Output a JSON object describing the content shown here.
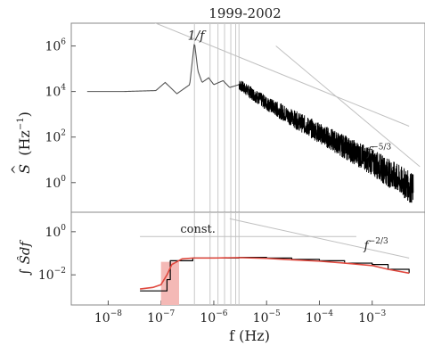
{
  "chart_data": [
    {
      "type": "line",
      "title": "1999-2002",
      "ylabel_main": "S",
      "ylabel_unit": "(Hz",
      "ylabel_exp": "−1",
      "ylabel_close": ")",
      "xscale": "log",
      "yscale": "log",
      "xlim": [
        2e-09,
        0.01
      ],
      "ylim": [
        0.05,
        10000000.0
      ],
      "yticks": [
        {
          "value": 1000000.0,
          "base": "10",
          "exp": "6"
        },
        {
          "value": 10000.0,
          "base": "10",
          "exp": "4"
        },
        {
          "value": 100.0,
          "base": "10",
          "exp": "2"
        },
        {
          "value": 1,
          "base": "10",
          "exp": "0"
        }
      ],
      "spectrum_envelope": {
        "x": [
          4e-09,
          2e-08,
          8e-08,
          1.2e-07,
          2e-07,
          3.5e-07,
          4.3e-07,
          5e-07,
          6e-07,
          8e-07,
          1e-06,
          1.5e-06,
          2e-06,
          3e-06,
          1e-05,
          0.0001,
          0.001,
          0.003,
          0.006
        ],
        "y": [
          10000,
          10000,
          11000,
          25000,
          8000,
          20000,
          1500000,
          80000,
          25000,
          40000,
          20000,
          30000,
          15000,
          20000,
          3000,
          150,
          8,
          1.5,
          0.5
        ],
        "noise_start": 3e-06
      },
      "vertical_lines_x": [
        4.3e-07,
        8.5e-07,
        1.2e-06,
        1.6e-06,
        2.1e-06,
        2.6e-06,
        3e-06
      ],
      "reference_lines": [
        {
          "label": "1/f",
          "x": [
            3e-08,
            0.005
          ],
          "y": [
            25000000.0,
            300
          ]
        },
        {
          "label": "f",
          "label_exp": "−5/3",
          "x": [
            1.5e-05,
            0.008
          ],
          "y": [
            1000000.0,
            5
          ]
        }
      ]
    },
    {
      "type": "line",
      "ylabel": "∫ Ŝdf",
      "xscale": "log",
      "yscale": "log",
      "xlim": [
        2e-09,
        0.01
      ],
      "ylim": [
        0.0004,
        8
      ],
      "yticks": [
        {
          "value": 1,
          "base": "10",
          "exp": "0"
        },
        {
          "value": 0.01,
          "base": "10",
          "exp": "−2"
        }
      ],
      "xticks": [
        {
          "value": 1e-08,
          "base": "10",
          "exp": "−8"
        },
        {
          "value": 1e-07,
          "base": "10",
          "exp": "−7"
        },
        {
          "value": 1e-06,
          "base": "10",
          "exp": "−6"
        },
        {
          "value": 1e-05,
          "base": "10",
          "exp": "−5"
        },
        {
          "value": 0.0001,
          "base": "10",
          "exp": "−4"
        },
        {
          "value": 0.001,
          "base": "10",
          "exp": "−3"
        }
      ],
      "xlabel": "f (Hz)",
      "series": [
        {
          "color": "#000000",
          "step": true,
          "x": [
            4e-08,
            1e-07,
            1.3e-07,
            1.5e-07,
            4e-07,
            1e-06,
            3e-06,
            1e-05,
            3e-05,
            0.0001,
            0.0003,
            0.001,
            0.002,
            0.005
          ],
          "y": [
            0.0018,
            0.0018,
            0.006,
            0.045,
            0.06,
            0.06,
            0.065,
            0.06,
            0.052,
            0.045,
            0.035,
            0.03,
            0.018,
            0.012
          ]
        },
        {
          "color": "#e0483e",
          "x": [
            4e-08,
            7e-08,
            1e-07,
            1.3e-07,
            1.6e-07,
            2.5e-07,
            4e-07,
            1e-06,
            3e-06,
            1e-05,
            3e-05,
            0.0001,
            0.0003,
            0.001,
            0.002,
            0.005
          ],
          "y": [
            0.0022,
            0.0026,
            0.0035,
            0.01,
            0.03,
            0.055,
            0.06,
            0.06,
            0.063,
            0.058,
            0.05,
            0.043,
            0.035,
            0.027,
            0.018,
            0.012
          ]
        }
      ],
      "shaded_region": {
        "color": "#f4b9b6",
        "x": [
          1e-07,
          2.2e-07
        ],
        "y": [
          0.0004,
          0.04
        ]
      },
      "reference_lines": [
        {
          "label": "const.",
          "x": [
            4e-08,
            0.0005
          ],
          "y": [
            0.6,
            0.6
          ]
        },
        {
          "label": "f",
          "label_exp": "−2/3",
          "x": [
            2e-06,
            0.005
          ],
          "y": [
            4,
            0.06
          ]
        }
      ]
    }
  ]
}
